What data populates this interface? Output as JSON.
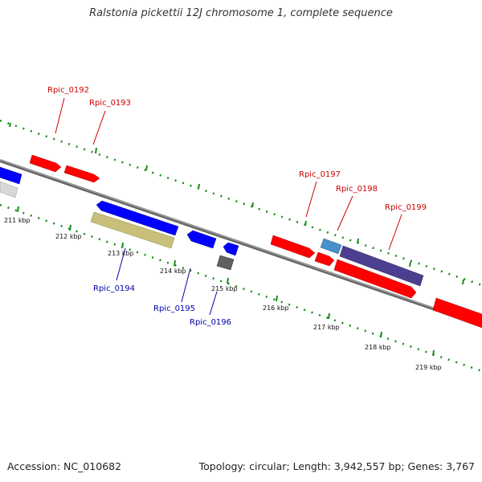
{
  "title": "Ralstonia pickettii 12J chromosome 1, complete sequence",
  "footer": {
    "accession": "Accession: NC_010682",
    "topology": "Topology: circular; Length: 3,942,557 bp; Genes: 3,767"
  },
  "colors": {
    "backbone": "#808080",
    "tick_dots": "#1a8c1a",
    "plus_strand_label": "#cc0000",
    "minus_strand_label": "#0000aa",
    "gene_red": "#ff0000",
    "gene_blue": "#0000ff",
    "gene_olive": "#c8c07a",
    "gene_gray": "#606060",
    "gene_lightblue": "#4a90c8",
    "gene_purple": "#4b3f8f",
    "gene_lightgray": "#d0d0d0"
  },
  "scale": {
    "ticks": [
      "211 kbp",
      "212 kbp",
      "213 kbp",
      "214 kbp",
      "215 kbp",
      "216 kbp",
      "217 kbp",
      "218 kbp",
      "219 kbp"
    ]
  },
  "genes": {
    "labels": [
      {
        "name": "Rpic_0192",
        "strand": "plus"
      },
      {
        "name": "Rpic_0193",
        "strand": "plus"
      },
      {
        "name": "Rpic_0197",
        "strand": "plus"
      },
      {
        "name": "Rpic_0198",
        "strand": "plus"
      },
      {
        "name": "Rpic_0199",
        "strand": "plus"
      },
      {
        "name": "Rpic_0194",
        "strand": "minus"
      },
      {
        "name": "Rpic_0195",
        "strand": "minus"
      },
      {
        "name": "Rpic_0196",
        "strand": "minus"
      }
    ]
  }
}
